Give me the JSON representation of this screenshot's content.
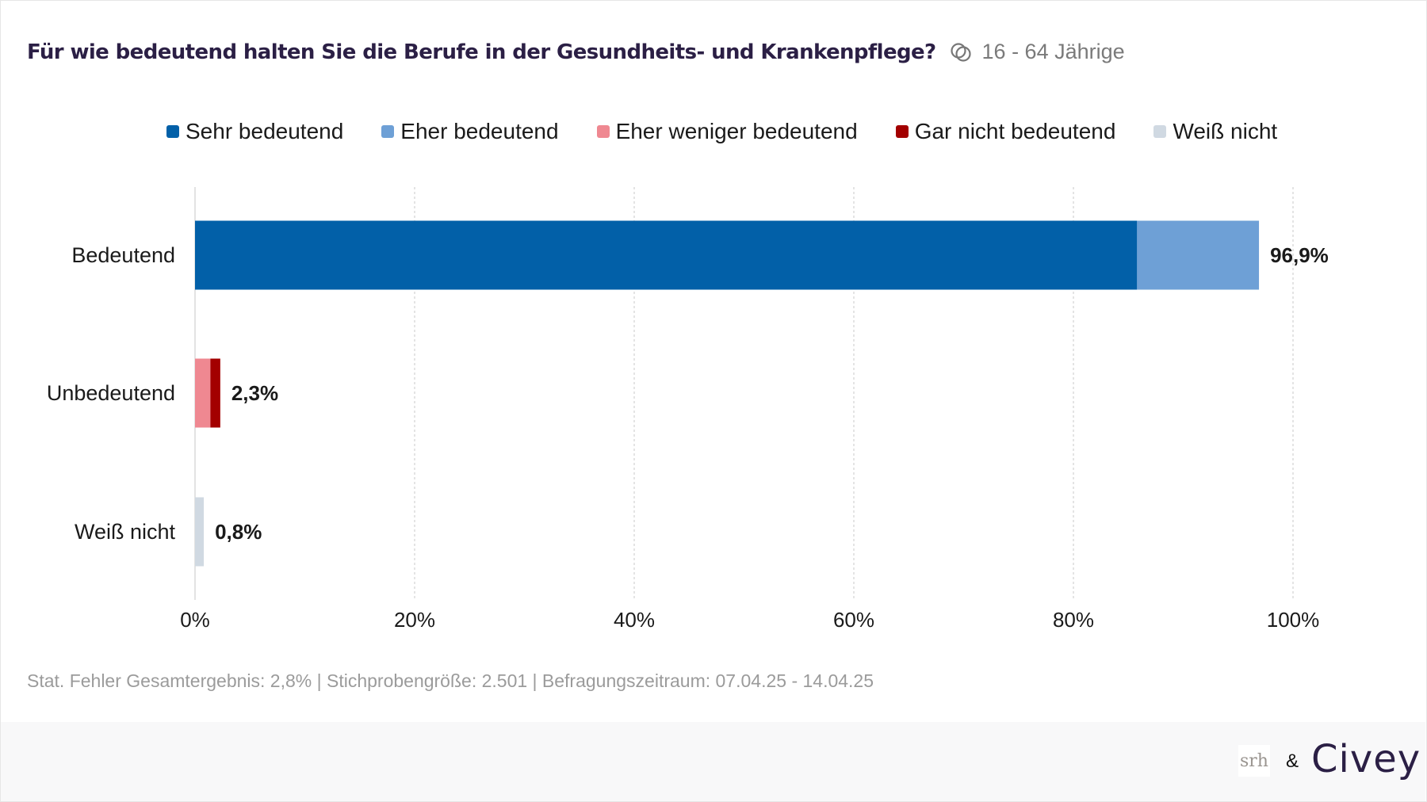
{
  "header": {
    "title": "Für wie bedeutend halten Sie die Berufe in der Gesundheits- und Krankenpflege?",
    "audience_icon": "audience-circles-icon",
    "audience": "16 - 64 Jährige"
  },
  "footer": {
    "note": "Stat. Fehler Gesamtergebnis: 2,8% | Stichprobengröße: 2.501 | Befragungszeitraum: 07.04.25 - 14.04.25",
    "logo_partner": "srh",
    "ampersand": "&",
    "logo_brand": "Civey"
  },
  "chart_data": {
    "type": "bar",
    "orientation": "horizontal",
    "stacked": true,
    "title": "Für wie bedeutend halten Sie die Berufe in der Gesundheits- und Krankenpflege?",
    "xlabel": "",
    "ylabel": "",
    "xlim": [
      0,
      100
    ],
    "x_ticks": [
      "0%",
      "20%",
      "40%",
      "60%",
      "80%",
      "100%"
    ],
    "x_tick_values": [
      0,
      20,
      40,
      60,
      80,
      100
    ],
    "grid": true,
    "legend_position": "top",
    "categories": [
      "Bedeutend",
      "Unbedeutend",
      "Weiß nicht"
    ],
    "series": [
      {
        "name": "Sehr bedeutend",
        "color": "#0260a8",
        "values": [
          85.8,
          0,
          0
        ]
      },
      {
        "name": "Eher bedeutend",
        "color": "#6ea0d6",
        "values": [
          11.1,
          0,
          0
        ]
      },
      {
        "name": "Eher weniger bedeutend",
        "color": "#ef8891",
        "values": [
          0,
          1.4,
          0
        ]
      },
      {
        "name": "Gar nicht bedeutend",
        "color": "#a30000",
        "values": [
          0,
          0.9,
          0
        ]
      },
      {
        "name": "Weiß nicht",
        "color": "#d0d9e2",
        "values": [
          0,
          0,
          0.8
        ]
      }
    ],
    "totals": [
      "96,9%",
      "2,3%",
      "0,8%"
    ]
  }
}
